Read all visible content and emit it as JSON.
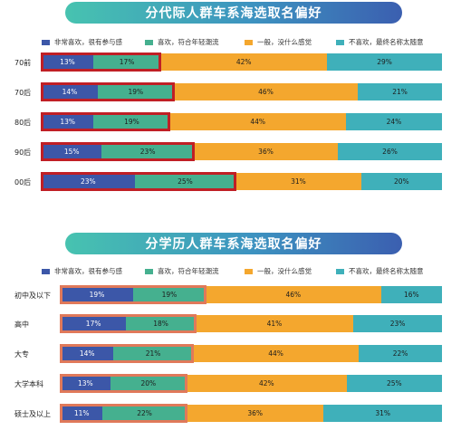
{
  "colors": {
    "s1": "#3c57a8",
    "s2": "#45b08f",
    "s3": "#f4a72e",
    "s4": "#3fb0ba",
    "highlight_top": "#c01f25",
    "highlight_bottom": "#e0795a"
  },
  "legend": [
    "非常喜欢，很有参与感",
    "喜欢，符合年轻潮流",
    "一般，没什么感觉",
    "不喜欢，最终名称太随意"
  ],
  "chart_data": [
    {
      "type": "bar",
      "stacked": "percent",
      "orientation": "horizontal",
      "title": "分代际人群车系海选取名偏好",
      "categories": [
        "70前",
        "70后",
        "80后",
        "90后",
        "00后"
      ],
      "series": [
        {
          "name": "非常喜欢，很有参与感",
          "values": [
            13,
            14,
            13,
            15,
            23
          ]
        },
        {
          "name": "喜欢，符合年轻潮流",
          "values": [
            17,
            19,
            19,
            23,
            25
          ]
        },
        {
          "name": "一般，没什么感觉",
          "values": [
            42,
            46,
            44,
            36,
            31
          ]
        },
        {
          "name": "不喜欢，最终名称太随意",
          "values": [
            29,
            21,
            24,
            26,
            20
          ]
        }
      ],
      "legend_position": "top",
      "highlight": "first two segments of each bar outlined"
    },
    {
      "type": "bar",
      "stacked": "percent",
      "orientation": "horizontal",
      "title": "分学历人群车系海选取名偏好",
      "categories": [
        "初中及以下",
        "高中",
        "大专",
        "大学本科",
        "硕士及以上"
      ],
      "series": [
        {
          "name": "非常喜欢，很有参与感",
          "values": [
            19,
            17,
            14,
            13,
            11
          ]
        },
        {
          "name": "喜欢，符合年轻潮流",
          "values": [
            19,
            18,
            21,
            20,
            22
          ]
        },
        {
          "name": "一般，没什么感觉",
          "values": [
            46,
            41,
            44,
            42,
            36
          ]
        },
        {
          "name": "不喜欢，最终名称太随意",
          "values": [
            16,
            23,
            22,
            25,
            31
          ]
        }
      ],
      "legend_position": "top",
      "highlight": "first two segments of each bar outlined"
    }
  ]
}
